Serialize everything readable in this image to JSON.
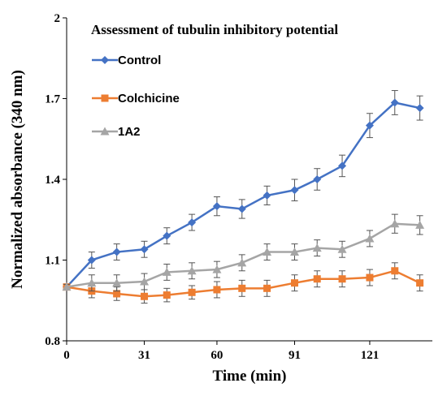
{
  "chart_data": {
    "type": "line",
    "title": "Assessment of tubulin inhibitory potential",
    "xlabel": "Time (min)",
    "ylabel": "Normalized absorbance (340 nm)",
    "xlim": [
      0,
      146
    ],
    "ylim": [
      0.8,
      2.0
    ],
    "x_ticks": [
      "0",
      "31",
      "60",
      "91",
      "121"
    ],
    "y_ticks": [
      "0.8",
      "1.1",
      "1.4",
      "1.7",
      "2"
    ],
    "x": [
      0,
      10,
      20,
      31,
      40,
      50,
      60,
      70,
      80,
      91,
      100,
      110,
      121,
      131,
      141
    ],
    "grid": false,
    "legend_position": "top-left",
    "series": [
      {
        "name": "Control",
        "color": "#4472C4",
        "marker": "diamond",
        "values": [
          1.0,
          1.1,
          1.13,
          1.14,
          1.19,
          1.24,
          1.3,
          1.29,
          1.34,
          1.36,
          1.4,
          1.45,
          1.6,
          1.685,
          1.665
        ],
        "errors": [
          0.01,
          0.03,
          0.03,
          0.03,
          0.03,
          0.03,
          0.035,
          0.035,
          0.035,
          0.04,
          0.04,
          0.04,
          0.045,
          0.045,
          0.045
        ]
      },
      {
        "name": "Colchicine",
        "color": "#ED7D31",
        "marker": "square",
        "values": [
          1.0,
          0.985,
          0.975,
          0.965,
          0.97,
          0.98,
          0.99,
          0.995,
          0.995,
          1.015,
          1.03,
          1.03,
          1.035,
          1.06,
          1.015
        ],
        "errors": [
          0.01,
          0.025,
          0.025,
          0.025,
          0.025,
          0.025,
          0.03,
          0.03,
          0.03,
          0.03,
          0.03,
          0.03,
          0.03,
          0.03,
          0.03
        ]
      },
      {
        "name": "1A2",
        "color": "#A5A5A5",
        "marker": "triangle",
        "values": [
          1.0,
          1.015,
          1.015,
          1.02,
          1.055,
          1.06,
          1.065,
          1.09,
          1.13,
          1.13,
          1.145,
          1.14,
          1.18,
          1.235,
          1.23
        ],
        "errors": [
          0.01,
          0.03,
          0.03,
          0.03,
          0.03,
          0.03,
          0.03,
          0.03,
          0.03,
          0.03,
          0.03,
          0.03,
          0.03,
          0.035,
          0.035
        ]
      }
    ]
  }
}
